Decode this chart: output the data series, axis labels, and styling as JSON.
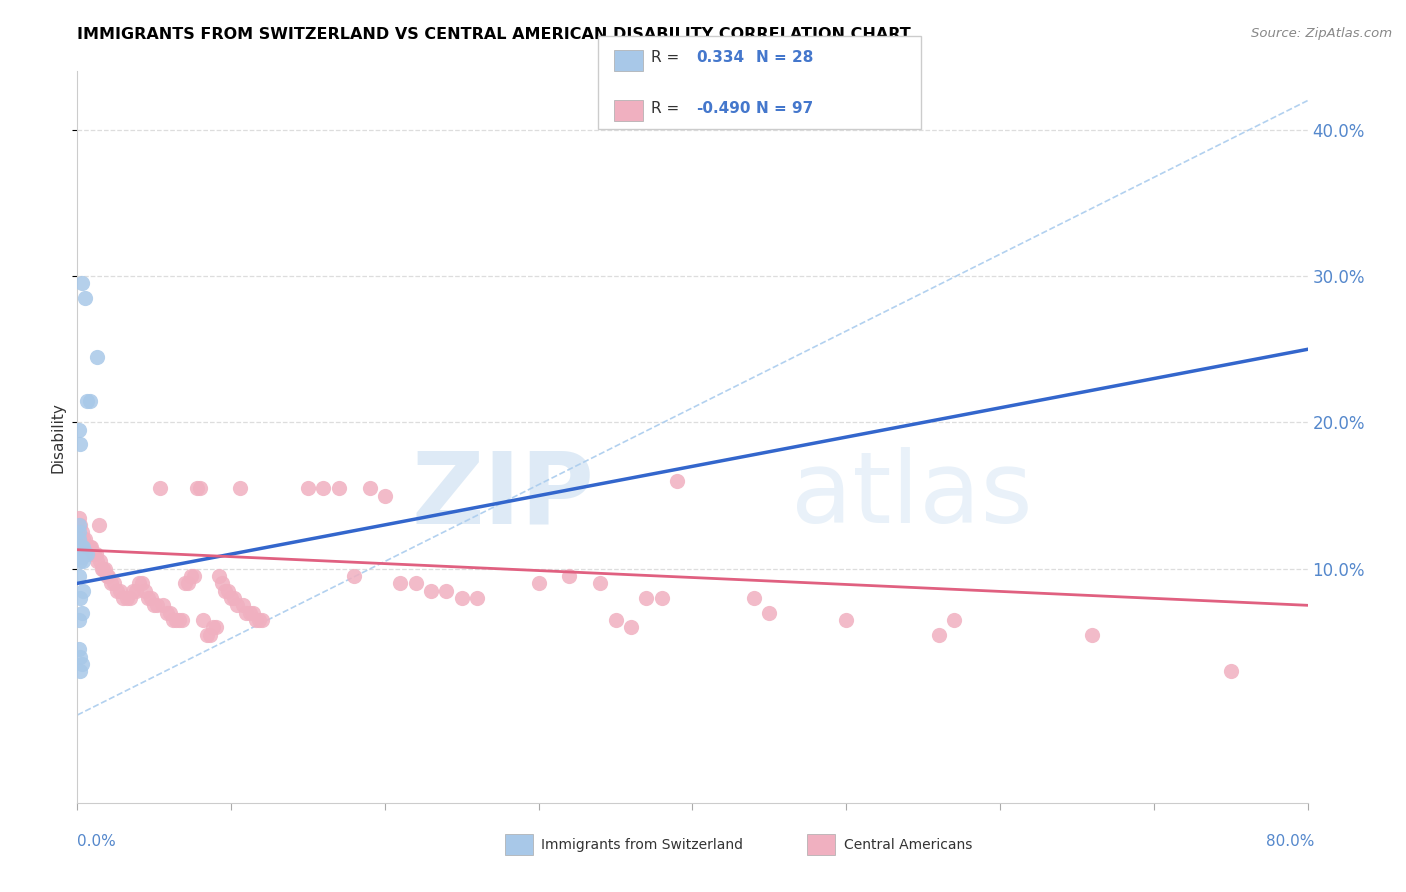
{
  "title": "IMMIGRANTS FROM SWITZERLAND VS CENTRAL AMERICAN DISABILITY CORRELATION CHART",
  "source": "Source: ZipAtlas.com",
  "ylabel": "Disability",
  "xlim": [
    0.0,
    0.8
  ],
  "ylim": [
    -0.06,
    0.44
  ],
  "ytick_vals": [
    0.1,
    0.2,
    0.3,
    0.4
  ],
  "ytick_labels": [
    "10.0%",
    "20.0%",
    "30.0%",
    "40.0%"
  ],
  "xtick_vals": [
    0.0,
    0.1,
    0.2,
    0.3,
    0.4,
    0.5,
    0.6,
    0.7,
    0.8
  ],
  "blue_scatter_color": "#a8c8e8",
  "pink_scatter_color": "#f0b0c0",
  "blue_line_color": "#3366cc",
  "pink_line_color": "#e06080",
  "diag_line_color": "#aaccee",
  "background_color": "#ffffff",
  "grid_color": "#dddddd",
  "watermark_zip": "ZIP",
  "watermark_atlas": "atlas",
  "watermark_color": "#ccddf0",
  "swiss_r": 0.334,
  "swiss_n": 28,
  "central_r": -0.49,
  "central_n": 97,
  "swiss_points": [
    [
      0.001,
      0.195
    ],
    [
      0.005,
      0.285
    ],
    [
      0.003,
      0.295
    ],
    [
      0.008,
      0.215
    ],
    [
      0.006,
      0.215
    ],
    [
      0.002,
      0.185
    ],
    [
      0.001,
      0.13
    ],
    [
      0.001,
      0.125
    ],
    [
      0.001,
      0.12
    ],
    [
      0.001,
      0.115
    ],
    [
      0.002,
      0.11
    ],
    [
      0.003,
      0.115
    ],
    [
      0.004,
      0.115
    ],
    [
      0.002,
      0.105
    ],
    [
      0.003,
      0.108
    ],
    [
      0.004,
      0.105
    ],
    [
      0.005,
      0.11
    ],
    [
      0.006,
      0.11
    ],
    [
      0.001,
      0.095
    ],
    [
      0.002,
      0.08
    ],
    [
      0.003,
      0.07
    ],
    [
      0.001,
      0.065
    ],
    [
      0.001,
      0.045
    ],
    [
      0.002,
      0.04
    ],
    [
      0.003,
      0.035
    ],
    [
      0.002,
      0.03
    ],
    [
      0.004,
      0.085
    ],
    [
      0.013,
      0.245
    ]
  ],
  "central_points": [
    [
      0.001,
      0.135
    ],
    [
      0.002,
      0.13
    ],
    [
      0.003,
      0.125
    ],
    [
      0.004,
      0.12
    ],
    [
      0.005,
      0.12
    ],
    [
      0.006,
      0.115
    ],
    [
      0.007,
      0.115
    ],
    [
      0.008,
      0.115
    ],
    [
      0.009,
      0.115
    ],
    [
      0.01,
      0.11
    ],
    [
      0.011,
      0.11
    ],
    [
      0.012,
      0.11
    ],
    [
      0.013,
      0.105
    ],
    [
      0.014,
      0.13
    ],
    [
      0.015,
      0.105
    ],
    [
      0.016,
      0.1
    ],
    [
      0.017,
      0.1
    ],
    [
      0.018,
      0.1
    ],
    [
      0.019,
      0.095
    ],
    [
      0.02,
      0.095
    ],
    [
      0.022,
      0.09
    ],
    [
      0.024,
      0.09
    ],
    [
      0.026,
      0.085
    ],
    [
      0.028,
      0.085
    ],
    [
      0.03,
      0.08
    ],
    [
      0.032,
      0.08
    ],
    [
      0.034,
      0.08
    ],
    [
      0.036,
      0.085
    ],
    [
      0.038,
      0.085
    ],
    [
      0.04,
      0.09
    ],
    [
      0.042,
      0.09
    ],
    [
      0.044,
      0.085
    ],
    [
      0.046,
      0.08
    ],
    [
      0.048,
      0.08
    ],
    [
      0.05,
      0.075
    ],
    [
      0.052,
      0.075
    ],
    [
      0.054,
      0.155
    ],
    [
      0.056,
      0.075
    ],
    [
      0.058,
      0.07
    ],
    [
      0.06,
      0.07
    ],
    [
      0.062,
      0.065
    ],
    [
      0.064,
      0.065
    ],
    [
      0.066,
      0.065
    ],
    [
      0.068,
      0.065
    ],
    [
      0.07,
      0.09
    ],
    [
      0.072,
      0.09
    ],
    [
      0.074,
      0.095
    ],
    [
      0.076,
      0.095
    ],
    [
      0.078,
      0.155
    ],
    [
      0.08,
      0.155
    ],
    [
      0.082,
      0.065
    ],
    [
      0.084,
      0.055
    ],
    [
      0.086,
      0.055
    ],
    [
      0.088,
      0.06
    ],
    [
      0.09,
      0.06
    ],
    [
      0.092,
      0.095
    ],
    [
      0.094,
      0.09
    ],
    [
      0.096,
      0.085
    ],
    [
      0.098,
      0.085
    ],
    [
      0.1,
      0.08
    ],
    [
      0.102,
      0.08
    ],
    [
      0.104,
      0.075
    ],
    [
      0.106,
      0.155
    ],
    [
      0.108,
      0.075
    ],
    [
      0.11,
      0.07
    ],
    [
      0.112,
      0.07
    ],
    [
      0.114,
      0.07
    ],
    [
      0.116,
      0.065
    ],
    [
      0.118,
      0.065
    ],
    [
      0.12,
      0.065
    ],
    [
      0.15,
      0.155
    ],
    [
      0.16,
      0.155
    ],
    [
      0.17,
      0.155
    ],
    [
      0.18,
      0.095
    ],
    [
      0.19,
      0.155
    ],
    [
      0.2,
      0.15
    ],
    [
      0.21,
      0.09
    ],
    [
      0.22,
      0.09
    ],
    [
      0.23,
      0.085
    ],
    [
      0.24,
      0.085
    ],
    [
      0.25,
      0.08
    ],
    [
      0.26,
      0.08
    ],
    [
      0.3,
      0.09
    ],
    [
      0.32,
      0.095
    ],
    [
      0.34,
      0.09
    ],
    [
      0.35,
      0.065
    ],
    [
      0.36,
      0.06
    ],
    [
      0.37,
      0.08
    ],
    [
      0.38,
      0.08
    ],
    [
      0.39,
      0.16
    ],
    [
      0.44,
      0.08
    ],
    [
      0.45,
      0.07
    ],
    [
      0.5,
      0.065
    ],
    [
      0.56,
      0.055
    ],
    [
      0.57,
      0.065
    ],
    [
      0.66,
      0.055
    ],
    [
      0.75,
      0.03
    ]
  ],
  "swiss_line_x": [
    0.0,
    0.8
  ],
  "swiss_line_y_start": 0.09,
  "swiss_line_y_end": 0.25,
  "pink_line_y_start": 0.113,
  "pink_line_y_end": 0.075
}
